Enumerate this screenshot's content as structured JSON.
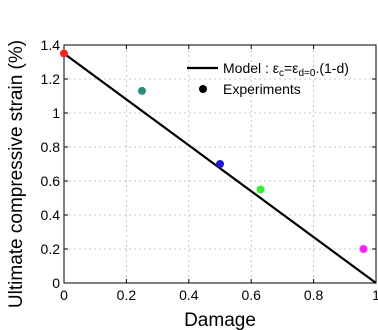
{
  "chart_data": {
    "type": "scatter",
    "xlabel": "Damage",
    "ylabel": "Ultimate compressive strain (%)",
    "xlim": [
      0,
      1
    ],
    "ylim": [
      0,
      1.4
    ],
    "xticks": [
      0,
      0.2,
      0.4,
      0.6,
      0.8,
      1
    ],
    "yticks": [
      0,
      0.2,
      0.4,
      0.6,
      0.8,
      1,
      1.2,
      1.4
    ],
    "xtick_labels": [
      "0",
      "0.2",
      "0.4",
      "0.6",
      "0.8",
      "1"
    ],
    "ytick_labels": [
      "0",
      "0.2",
      "0.4",
      "0.6",
      "0.8",
      "1",
      "1.2",
      "1.4"
    ],
    "grid": true,
    "legend_position": "top-right",
    "series": [
      {
        "name": "Model : εc=εd=0.(1-d)",
        "kind": "line",
        "color": "#000000",
        "x": [
          0,
          1
        ],
        "y": [
          1.35,
          0
        ]
      },
      {
        "name": "Experiments",
        "kind": "scatter",
        "legend_color": "#000000",
        "points": [
          {
            "x": 0.0,
            "y": 1.35,
            "color": "#ff2020"
          },
          {
            "x": 0.25,
            "y": 1.13,
            "color": "#2a8a80"
          },
          {
            "x": 0.5,
            "y": 0.7,
            "color": "#1a1ad0"
          },
          {
            "x": 0.63,
            "y": 0.55,
            "color": "#33ee33"
          },
          {
            "x": 0.96,
            "y": 0.2,
            "color": "#ff22ff"
          }
        ]
      }
    ],
    "legend": {
      "model_prefix": "Model : ε",
      "model_sub1": "c",
      "model_mid": "=ε",
      "model_sub2": "d=0",
      "model_suffix": ".(1-d)",
      "experiments": "Experiments"
    }
  }
}
